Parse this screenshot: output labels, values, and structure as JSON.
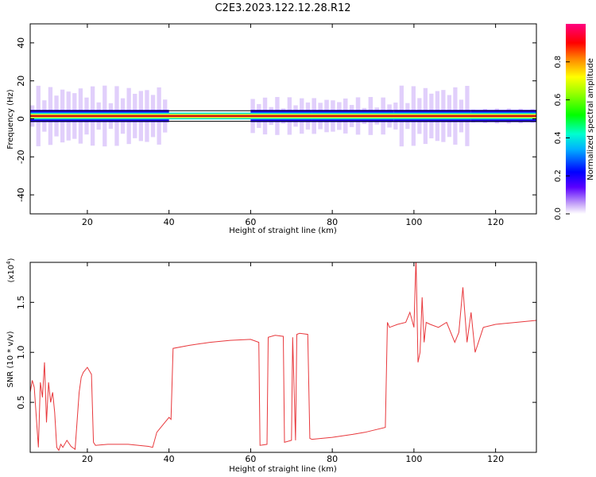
{
  "title": "C2E3.2023.122.12.28.R12",
  "colors": {
    "line": "#e8383c",
    "band_core": "#d01010",
    "band_mid": "#f0f020",
    "band_outer": "#00e8d0",
    "band_halo": "#2000ff",
    "band_fringe": "#c8a8f8",
    "axis": "#000000"
  },
  "chart_data": [
    {
      "type": "heatmap",
      "title": "",
      "xlabel": "Height of straight line (km)",
      "ylabel": "Frequency (Hz)",
      "xlim": [
        6,
        130
      ],
      "ylim": [
        -50,
        50
      ],
      "x_ticks": [
        "20",
        "40",
        "60",
        "80",
        "100",
        "120"
      ],
      "y_ticks": [
        "-40",
        "-20",
        "0",
        "20",
        "40"
      ],
      "center_frequency_hz": 1.5,
      "active_segments": [
        {
          "from": 6,
          "to": 40,
          "spread": "wide"
        },
        {
          "from": 60,
          "to": 75,
          "spread": "medium"
        },
        {
          "from": 75,
          "to": 95,
          "spread": "medium"
        },
        {
          "from": 95,
          "to": 114,
          "spread": "wide"
        },
        {
          "from": 114,
          "to": 130,
          "spread": "narrow"
        }
      ],
      "colorbar": {
        "label": "Normalized spectral amplitude",
        "range": [
          0,
          1
        ],
        "ticks": [
          "0.0",
          "0.2",
          "0.4",
          "0.6",
          "0.8"
        ],
        "colormap": "rainbow"
      }
    },
    {
      "type": "line",
      "title": "",
      "xlabel": "Height of straight line (km)",
      "ylabel": "SNR (10 * v/v)",
      "scale_label": "(x10",
      "scale_exponent": "4",
      "scale_close": ")",
      "xlim": [
        6,
        130
      ],
      "ylim": [
        0,
        1.9
      ],
      "x_ticks": [
        "20",
        "40",
        "60",
        "80",
        "100",
        "120"
      ],
      "y_ticks": [
        "0.5",
        "1.0",
        "1.5"
      ],
      "series": [
        {
          "x": [
            6,
            6.5,
            7,
            8,
            8.5,
            9,
            9.5,
            10,
            10.5,
            11,
            11.5,
            12,
            12.5,
            13,
            13.5,
            14,
            15,
            16,
            17,
            18,
            18.5,
            19,
            20,
            21,
            21.5,
            22,
            25,
            30,
            35,
            36,
            37,
            38,
            39,
            40,
            40.5,
            41,
            45,
            50,
            55,
            60,
            62,
            62.3,
            64,
            64.3,
            66,
            68,
            68.3,
            70,
            70.3,
            71,
            71.3,
            72,
            74,
            74.5,
            75,
            80,
            85,
            88,
            90,
            93,
            93.5,
            94,
            96,
            98,
            99,
            100,
            100.5,
            101,
            101.5,
            102,
            102.5,
            103,
            104,
            106,
            108,
            110,
            111,
            112,
            113,
            114,
            115,
            117,
            120,
            125,
            130
          ],
          "y": [
            0.6,
            0.72,
            0.65,
            0.05,
            0.7,
            0.55,
            0.9,
            0.3,
            0.7,
            0.5,
            0.6,
            0.4,
            0.05,
            0.02,
            0.08,
            0.05,
            0.12,
            0.06,
            0.03,
            0.6,
            0.75,
            0.8,
            0.85,
            0.78,
            0.1,
            0.07,
            0.08,
            0.08,
            0.06,
            0.05,
            0.2,
            0.25,
            0.3,
            0.35,
            0.33,
            1.04,
            1.07,
            1.1,
            1.12,
            1.13,
            1.1,
            0.07,
            0.08,
            1.15,
            1.17,
            1.16,
            0.1,
            0.12,
            1.15,
            0.12,
            1.18,
            1.19,
            1.18,
            0.14,
            0.13,
            0.15,
            0.18,
            0.2,
            0.22,
            0.25,
            1.3,
            1.25,
            1.28,
            1.3,
            1.4,
            1.25,
            1.95,
            0.9,
            1.0,
            1.55,
            1.1,
            1.3,
            1.28,
            1.25,
            1.3,
            1.1,
            1.2,
            1.65,
            1.1,
            1.4,
            1.0,
            1.25,
            1.28,
            1.3,
            1.32
          ]
        }
      ]
    }
  ]
}
